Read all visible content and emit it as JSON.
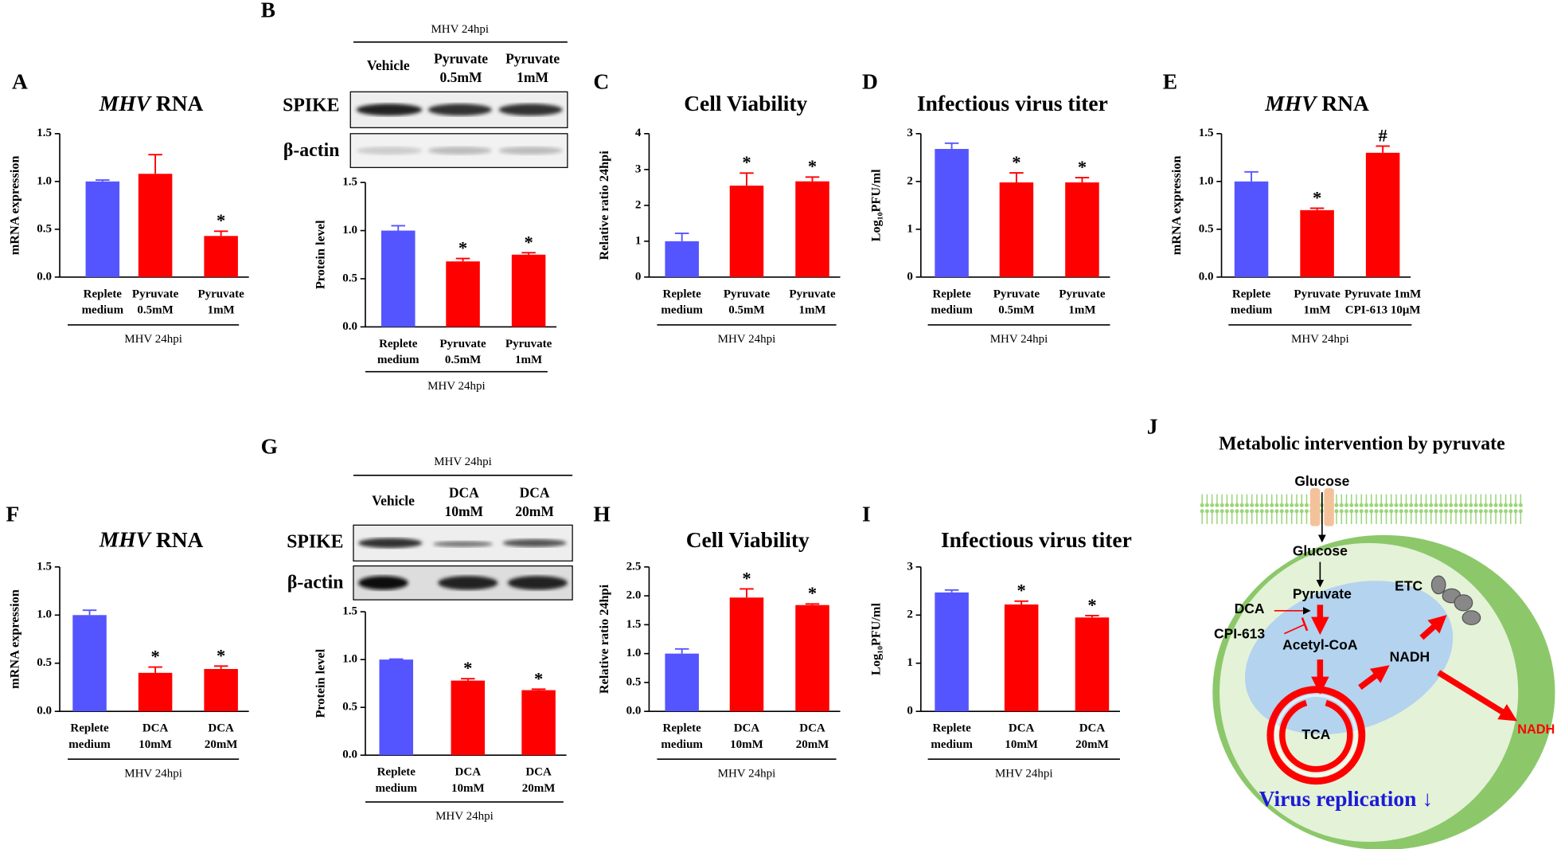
{
  "chart_data": [
    {
      "type": "bar",
      "panel": "A",
      "title": "MHV RNA",
      "ylabel": "mRNA expression",
      "xlabel": "MHV 24hpi",
      "categories": [
        "Replete\nmedium",
        "Pyruvate\n0.5mM",
        "Pyruvate\n1mM"
      ],
      "values": [
        1.0,
        1.08,
        0.43
      ],
      "errors": [
        0.015,
        0.2,
        0.05
      ],
      "significance": [
        null,
        null,
        "*"
      ],
      "colors": [
        "#5555ff",
        "#ff0000",
        "#ff0000"
      ],
      "ylim": [
        0,
        1.5
      ],
      "yticks": [
        {
          "value": 0,
          "label": "0.0"
        },
        0.5,
        {
          "value": 1,
          "label": "1.0"
        },
        1.5
      ]
    },
    {
      "type": "bar",
      "ylabel": "Protein level",
      "xlabel": "MHV 24hpi",
      "categories": [
        "Replete\nmedium",
        "Pyruvate\n0.5mM",
        "Pyruvate\n1mM"
      ],
      "values": [
        1.0,
        0.68,
        0.75
      ],
      "errors": [
        0.05,
        0.03,
        0.02
      ],
      "significance": [
        null,
        "*",
        "*"
      ],
      "colors": [
        "#5555ff",
        "#ff0000",
        "#ff0000"
      ],
      "ylim": [
        0,
        1.5
      ],
      "yticks": [
        {
          "value": 0,
          "label": "0.0"
        },
        0.5,
        {
          "value": 1,
          "label": "1.0"
        },
        1.5
      ]
    },
    {
      "type": "bar",
      "panel": "C",
      "title": "Cell Viability",
      "ylabel": "Relative ratio 24hpi",
      "xlabel": "MHV 24hpi",
      "categories": [
        "Replete\nmedium",
        "Pyruvate\n0.5mM",
        "Pyruvate\n1mM"
      ],
      "values": [
        1.0,
        2.55,
        2.67
      ],
      "errors": [
        0.22,
        0.35,
        0.12
      ],
      "significance": [
        null,
        "*",
        "*"
      ],
      "colors": [
        "#5555ff",
        "#ff0000",
        "#ff0000"
      ],
      "ylim": [
        0,
        4
      ],
      "yticks": [
        0,
        1,
        2,
        3,
        4
      ]
    },
    {
      "type": "bar",
      "panel": "D",
      "title": "Infectious virus titer",
      "ylabel": "Log₁₀PFU/ml",
      "xlabel": "MHV 24hpi",
      "categories": [
        "Replete\nmedium",
        "Pyruvate\n0.5mM",
        "Pyruvate\n1mM"
      ],
      "values": [
        2.68,
        1.98,
        1.98
      ],
      "errors": [
        0.12,
        0.2,
        0.1
      ],
      "significance": [
        null,
        "*",
        "*"
      ],
      "colors": [
        "#5555ff",
        "#ff0000",
        "#ff0000"
      ],
      "ylim": [
        0,
        3
      ],
      "yticks": [
        0,
        1,
        2,
        3
      ]
    },
    {
      "type": "bar",
      "panel": "E",
      "title": "MHV RNA",
      "ylabel": "mRNA expression",
      "xlabel": "MHV 24hpi",
      "categories": [
        "Replete\nmedium",
        "Pyruvate\n1mM",
        "Pyruvate 1mM\nCPI-613 10μM"
      ],
      "values": [
        1.0,
        0.7,
        1.3
      ],
      "errors": [
        0.1,
        0.02,
        0.07
      ],
      "significance": [
        null,
        "*",
        "#"
      ],
      "colors": [
        "#5555ff",
        "#ff0000",
        "#ff0000"
      ],
      "ylim": [
        0,
        1.5
      ],
      "yticks": [
        {
          "value": 0,
          "label": "0.0"
        },
        0.5,
        {
          "value": 1,
          "label": "1.0"
        },
        1.5
      ]
    },
    {
      "type": "bar",
      "panel": "F",
      "title": "MHV RNA",
      "ylabel": "mRNA expression",
      "xlabel": "MHV 24hpi",
      "categories": [
        "Replete\nmedium",
        "DCA\n10mM",
        "DCA\n20mM"
      ],
      "values": [
        1.0,
        0.4,
        0.44
      ],
      "errors": [
        0.05,
        0.06,
        0.03
      ],
      "significance": [
        null,
        "*",
        "*"
      ],
      "colors": [
        "#5555ff",
        "#ff0000",
        "#ff0000"
      ],
      "ylim": [
        0,
        1.5
      ],
      "yticks": [
        {
          "value": 0,
          "label": "0.0"
        },
        0.5,
        {
          "value": 1,
          "label": "1.0"
        },
        1.5
      ]
    },
    {
      "type": "bar",
      "ylabel": "Protein level",
      "xlabel": "MHV 24hpi",
      "categories": [
        "Replete\nmedium",
        "DCA\n10mM",
        "DCA\n20mM"
      ],
      "values": [
        1.0,
        0.78,
        0.68
      ],
      "errors": [
        0.005,
        0.02,
        0.01
      ],
      "significance": [
        null,
        "*",
        "*"
      ],
      "colors": [
        "#5555ff",
        "#ff0000",
        "#ff0000"
      ],
      "ylim": [
        0,
        1.5
      ],
      "yticks": [
        {
          "value": 0,
          "label": "0.0"
        },
        0.5,
        {
          "value": 1,
          "label": "1.0"
        },
        1.5
      ]
    },
    {
      "type": "bar",
      "panel": "H",
      "title": "Cell Viability",
      "ylabel": "Relative ratio 24hpi",
      "xlabel": "MHV 24hpi",
      "categories": [
        "Replete\nmedium",
        "DCA\n10mM",
        "DCA\n20mM"
      ],
      "values": [
        1.0,
        1.97,
        1.84
      ],
      "errors": [
        0.08,
        0.15,
        0.02
      ],
      "significance": [
        null,
        "*",
        "*"
      ],
      "colors": [
        "#5555ff",
        "#ff0000",
        "#ff0000"
      ],
      "ylim": [
        0,
        2.5
      ],
      "yticks": [
        {
          "value": 0,
          "label": "0.0"
        },
        0.5,
        {
          "value": 1,
          "label": "1.0"
        },
        1.5,
        {
          "value": 2,
          "label": "2.0"
        },
        2.5
      ]
    },
    {
      "type": "bar",
      "panel": "I",
      "title": "Infectious virus titer",
      "ylabel": "Log₁₀PFU/ml",
      "xlabel": "MHV 24hpi",
      "categories": [
        "Replete\nmedium",
        "DCA\n10mM",
        "DCA\n20mM"
      ],
      "values": [
        2.47,
        2.22,
        1.95
      ],
      "errors": [
        0.05,
        0.07,
        0.04
      ],
      "significance": [
        null,
        "*",
        "*"
      ],
      "colors": [
        "#5555ff",
        "#ff0000",
        "#ff0000"
      ],
      "ylim": [
        0,
        3
      ],
      "yticks": [
        0,
        1,
        2,
        3
      ]
    }
  ],
  "blots": [
    {
      "panel": "B",
      "header": "MHV 24hpi",
      "lanes": [
        "Vehicle",
        "Pyruvate\n0.5mM",
        "Pyruvate\n1mM"
      ],
      "rows": [
        "SPIKE",
        "β-actin"
      ]
    },
    {
      "panel": "G",
      "header": "MHV 24hpi",
      "lanes": [
        "Vehicle",
        "DCA\n10mM",
        "DCA\n20mM"
      ],
      "rows": [
        "SPIKE",
        "β-actin"
      ]
    }
  ],
  "diagram": {
    "panel": "J",
    "title": "Metabolic intervention by pyruvate",
    "glucose_out": "Glucose",
    "glucose_in": "Glucose",
    "pyruvate": "Pyruvate",
    "dca": "DCA",
    "cpi613": "CPI-613",
    "acetyl_coa": "Acetyl-CoA",
    "etc": "ETC",
    "nadh": "NADH",
    "tca": "TCA",
    "nadh_out": "NADH",
    "virus_replication": "Virus replication ↓"
  }
}
